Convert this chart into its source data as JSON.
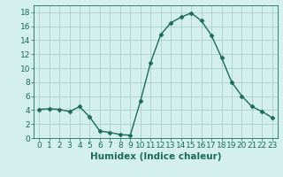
{
  "x": [
    0,
    1,
    2,
    3,
    4,
    5,
    6,
    7,
    8,
    9,
    10,
    11,
    12,
    13,
    14,
    15,
    16,
    17,
    18,
    19,
    20,
    21,
    22,
    23
  ],
  "y": [
    4.1,
    4.2,
    4.1,
    3.8,
    4.5,
    3.0,
    1.0,
    0.8,
    0.5,
    0.4,
    5.3,
    10.8,
    14.8,
    16.5,
    17.3,
    17.9,
    16.8,
    14.7,
    11.5,
    8.0,
    6.0,
    4.5,
    3.8,
    2.9
  ],
  "line_color": "#1a6b5a",
  "marker": "D",
  "marker_size": 2.5,
  "bg_color": "#d4f0ee",
  "grid_color": "#aacfcc",
  "xlabel": "Humidex (Indice chaleur)",
  "xlim": [
    -0.5,
    23.5
  ],
  "ylim": [
    0,
    19
  ],
  "yticks": [
    0,
    2,
    4,
    6,
    8,
    10,
    12,
    14,
    16,
    18
  ],
  "xticks": [
    0,
    1,
    2,
    3,
    4,
    5,
    6,
    7,
    8,
    9,
    10,
    11,
    12,
    13,
    14,
    15,
    16,
    17,
    18,
    19,
    20,
    21,
    22,
    23
  ],
  "tick_color": "#1a6b5a",
  "xlabel_fontsize": 7.5,
  "tick_fontsize": 6.5,
  "linewidth": 1.0
}
